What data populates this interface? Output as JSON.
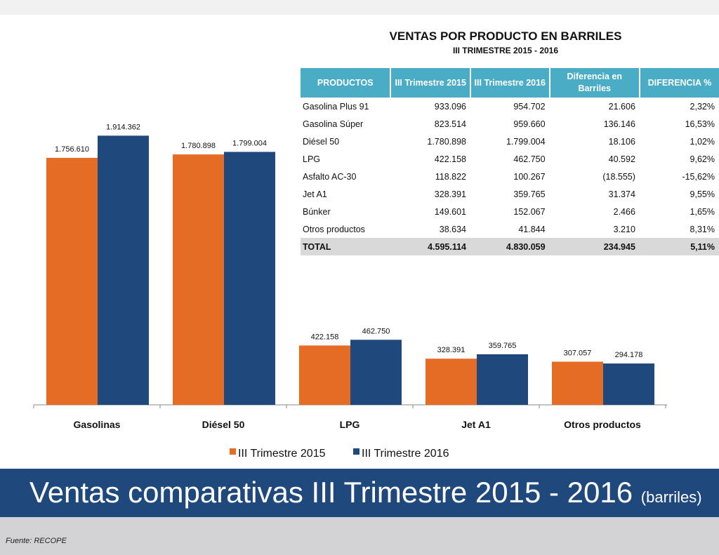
{
  "table": {
    "title": "VENTAS POR PRODUCTO EN BARRILES",
    "subtitle": "III TRIMESTRE 2015 - 2016",
    "header_color": "#4bacc6",
    "headers": [
      "PRODUCTOS",
      "III Trimestre 2015",
      "III Trimestre 2016",
      "Diferencia en Barriles",
      "DIFERENCIA %"
    ],
    "rows": [
      [
        "Gasolina Plus 91",
        "933.096",
        "954.702",
        "21.606",
        "2,32%"
      ],
      [
        "Gasolina Súper",
        "823.514",
        "959.660",
        "136.146",
        "16,53%"
      ],
      [
        "Diésel 50",
        "1.780.898",
        "1.799.004",
        "18.106",
        "1,02%"
      ],
      [
        "LPG",
        "422.158",
        "462.750",
        "40.592",
        "9,62%"
      ],
      [
        "Asfalto AC-30",
        "118.822",
        "100.267",
        "(18.555)",
        "-15,62%"
      ],
      [
        "Jet A1",
        "328.391",
        "359.765",
        "31.374",
        "9,55%"
      ],
      [
        "Búnker",
        "149.601",
        "152.067",
        "2.466",
        "1,65%"
      ],
      [
        "Otros productos",
        "38.634",
        "41.844",
        "3.210",
        "8,31%"
      ]
    ],
    "total": [
      "TOTAL",
      "4.595.114",
      "4.830.059",
      "234.945",
      "5,11%"
    ]
  },
  "chart_data": {
    "type": "bar",
    "categories": [
      "Gasolinas",
      "Diésel 50",
      "LPG",
      "Jet A1",
      "Otros productos"
    ],
    "series": [
      {
        "name": "III Trimestre 2015",
        "color": "#e46c25",
        "values": [
          1756610,
          1780898,
          422158,
          328391,
          307057
        ],
        "labels": [
          "1.756.610",
          "1.780.898",
          "422.158",
          "328.391",
          "307.057"
        ]
      },
      {
        "name": "III Trimestre 2016",
        "color": "#1f497d",
        "values": [
          1914362,
          1799004,
          462750,
          359765,
          294178
        ],
        "labels": [
          "1.914.362",
          "1.799.004",
          "462.750",
          "359.765",
          "294.178"
        ]
      }
    ],
    "legend": "bottom",
    "grid": false,
    "ylim": [
      0,
      2500000
    ]
  },
  "banner": {
    "title": "Ventas comparativas III Trimestre 2015 - 2016",
    "unit": "(barriles)",
    "color": "#1f497d"
  },
  "source": "Fuente: RECOPE"
}
